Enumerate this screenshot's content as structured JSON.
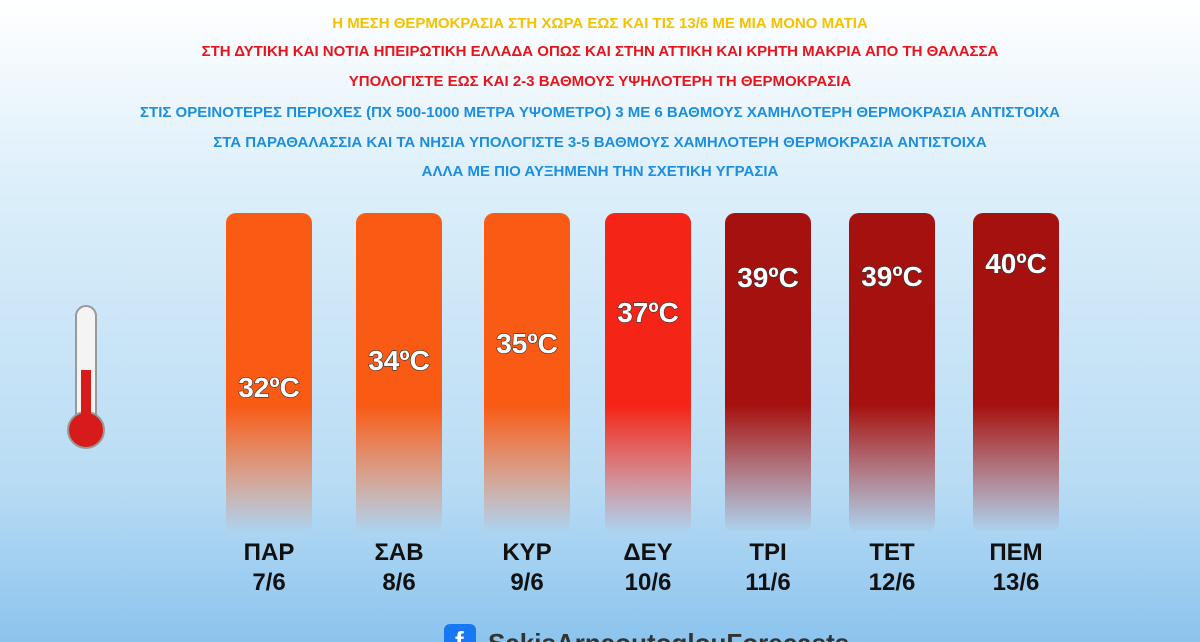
{
  "header": {
    "lines": [
      "Η ΜΕΣΗ ΘΕΡΜΟΚΡΑΣΙΑ ΣΤΗ ΧΩΡΑ ΕΩΣ ΚΑΙ ΤΙΣ 13/6 ΜΕ ΜΙΑ ΜΟΝΟ ΜΑΤΙΑ",
      "ΣΤΗ ΔΥΤΙΚΗ ΚΑΙ ΝΟΤΙΑ ΗΠΕΙΡΩΤΙΚΗ ΕΛΛΑΔΑ ΟΠΩΣ ΚΑΙ ΣΤΗΝ ΑΤΤΙΚΗ ΚΑΙ ΚΡΗΤΗ ΜΑΚΡΙΑ ΑΠΟ ΤΗ ΘΑΛΑΣΣΑ",
      "ΥΠΟΛΟΓΙΣΤΕ ΕΩΣ ΚΑΙ 2-3 ΒΑΘΜΟΥΣ ΥΨΗΛΟΤΕΡΗ ΤΗ ΘΕΡΜΟΚΡΑΣΙΑ",
      "ΣΤΙΣ ΟΡΕΙΝΟΤΕΡΕΣ ΠΕΡΙΟΧΕΣ (ΠΧ 500-1000 ΜΕΤΡΑ ΥΨΟΜΕΤΡΟ) 3 ΜΕ 6 ΒΑΘΜΟΥΣ ΧΑΜΗΛΟΤΕΡΗ ΘΕΡΜΟΚΡΑΣΙΑ ΑΝΤΙΣΤΟΙΧΑ",
      "ΣΤΑ ΠΑΡΑΘΑΛΑΣΣΙΑ ΚΑΙ ΤΑ ΝΗΣΙΑ ΥΠΟΛΟΓΙΣΤΕ 3-5 ΒΑΘΜΟΥΣ ΧΑΜΗΛΟΤΕΡΗ ΘΕΡΜΟΚΡΑΣΙΑ ΑΝΤΙΣΤΟΙΧΑ",
      "ΑΛΛΑ ΜΕ ΠΙΟ ΑΥΞΗΜΕΝΗ ΤΗΝ ΣΧΕΤΙΚΗ ΥΓΡΑΣΙΑ"
    ],
    "colors": [
      "#f2c200",
      "#e8141a",
      "#e8141a",
      "#1b8ee0",
      "#1b8ee0",
      "#1b8ee0"
    ]
  },
  "days": [
    {
      "day": "ΠΑΡ",
      "date": "7/6",
      "temp": "32ºC",
      "color": "#f95a14"
    },
    {
      "day": "ΣΑΒ",
      "date": "8/6",
      "temp": "34ºC",
      "color": "#f95a14"
    },
    {
      "day": "ΚΥΡ",
      "date": "9/6",
      "temp": "35ºC",
      "color": "#f95a14"
    },
    {
      "day": "ΔΕΥ",
      "date": "10/6",
      "temp": "37ºC",
      "color": "#f42416"
    },
    {
      "day": "ΤΡΙ",
      "date": "11/6",
      "temp": "39ºC",
      "color": "#a5110f"
    },
    {
      "day": "ΤΕΤ",
      "date": "12/6",
      "temp": "39ºC",
      "color": "#a5110f"
    },
    {
      "day": "ΠΕΜ",
      "date": "13/6",
      "temp": "40ºC",
      "color": "#a5110f"
    }
  ],
  "footer": "SakisArnaoutoglouForecasts"
}
